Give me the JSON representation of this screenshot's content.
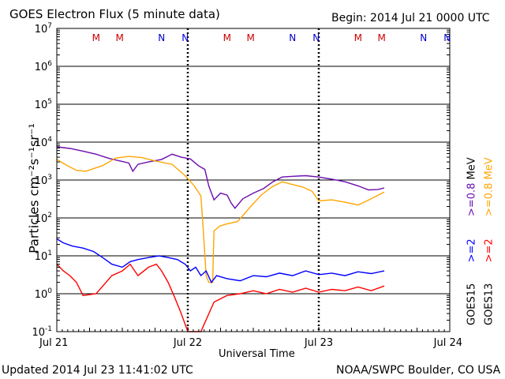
{
  "header": {
    "title": "GOES Electron Flux (5 minute data)",
    "begin": "Begin: 2014 Jul 21 0000 UTC"
  },
  "footer": {
    "updated": "Updated 2014 Jul 23 11:41:02 UTC",
    "credit": "NOAA/SWPC Boulder, CO USA"
  },
  "colors": {
    "goes15_low": "#0000ff",
    "goes15_high": "#6a0dad",
    "goes13_low": "#ff0000",
    "goes13_high": "#ffa500",
    "marker_m": "#cc0000",
    "marker_n": "#0000cc"
  },
  "chart_data": {
    "type": "line",
    "title": "GOES Electron Flux (5 minute data)",
    "xlabel": "Universal Time",
    "ylabel": "Particles cm⁻²s⁻¹sr⁻¹",
    "yscale": "log",
    "ylim": [
      0.1,
      10000000
    ],
    "y_ticks": [
      {
        "base": "10",
        "exp": "-1"
      },
      {
        "base": "10",
        "exp": "0"
      },
      {
        "base": "10",
        "exp": "1"
      },
      {
        "base": "10",
        "exp": "2"
      },
      {
        "base": "10",
        "exp": "3"
      },
      {
        "base": "10",
        "exp": "4"
      },
      {
        "base": "10",
        "exp": "5"
      },
      {
        "base": "10",
        "exp": "6"
      },
      {
        "base": "10",
        "exp": "7"
      }
    ],
    "x_ticks": [
      "Jul 21",
      "Jul 22",
      "Jul 23",
      "Jul 24"
    ],
    "xlim_days": [
      0,
      3
    ],
    "alert_threshold": 1000,
    "day_boundaries_days": [
      1,
      2
    ],
    "markers": [
      {
        "label": "M",
        "day": 0.3,
        "type": "m"
      },
      {
        "label": "M",
        "day": 0.48,
        "type": "m"
      },
      {
        "label": "N",
        "day": 0.8,
        "type": "n"
      },
      {
        "label": "N",
        "day": 0.98,
        "type": "n"
      },
      {
        "label": "M",
        "day": 1.3,
        "type": "m"
      },
      {
        "label": "M",
        "day": 1.48,
        "type": "m"
      },
      {
        "label": "N",
        "day": 1.8,
        "type": "n"
      },
      {
        "label": "N",
        "day": 1.98,
        "type": "n"
      },
      {
        "label": "M",
        "day": 2.3,
        "type": "m"
      },
      {
        "label": "M",
        "day": 2.48,
        "type": "m"
      },
      {
        "label": "N",
        "day": 2.8,
        "type": "n"
      },
      {
        "label": "N",
        "day": 2.98,
        "type": "n"
      }
    ],
    "legend": {
      "goes15": "GOES15",
      "goes13": "GOES13",
      "low_energy": ">=2",
      "high_energy": ">=0.8",
      "unit": "MeV"
    },
    "series": [
      {
        "satellite": "GOES15",
        "energy": ">=0.8 MeV",
        "color": "#6a0dad",
        "points": [
          [
            0,
            7500
          ],
          [
            0.1,
            6800
          ],
          [
            0.2,
            5800
          ],
          [
            0.3,
            4800
          ],
          [
            0.4,
            3700
          ],
          [
            0.55,
            2800
          ],
          [
            0.58,
            1700
          ],
          [
            0.62,
            2600
          ],
          [
            0.7,
            3000
          ],
          [
            0.8,
            3500
          ],
          [
            0.88,
            4800
          ],
          [
            0.95,
            4000
          ],
          [
            1.02,
            3600
          ],
          [
            1.08,
            2400
          ],
          [
            1.13,
            1900
          ],
          [
            1.16,
            700
          ],
          [
            1.2,
            300
          ],
          [
            1.25,
            450
          ],
          [
            1.3,
            400
          ],
          [
            1.33,
            250
          ],
          [
            1.36,
            180
          ],
          [
            1.42,
            320
          ],
          [
            1.5,
            450
          ],
          [
            1.58,
            600
          ],
          [
            1.65,
            900
          ],
          [
            1.72,
            1200
          ],
          [
            1.8,
            1250
          ],
          [
            1.9,
            1300
          ],
          [
            2.0,
            1200
          ],
          [
            2.1,
            1050
          ],
          [
            2.2,
            900
          ],
          [
            2.3,
            700
          ],
          [
            2.38,
            550
          ],
          [
            2.45,
            560
          ],
          [
            2.5,
            620
          ]
        ]
      },
      {
        "satellite": "GOES13",
        "energy": ">=0.8 MeV",
        "color": "#ffa500",
        "points": [
          [
            0,
            3500
          ],
          [
            0.08,
            2400
          ],
          [
            0.15,
            1800
          ],
          [
            0.22,
            1700
          ],
          [
            0.35,
            2400
          ],
          [
            0.45,
            3800
          ],
          [
            0.55,
            4200
          ],
          [
            0.65,
            3900
          ],
          [
            0.75,
            3200
          ],
          [
            0.88,
            2600
          ],
          [
            0.98,
            1300
          ],
          [
            1.05,
            700
          ],
          [
            1.1,
            380
          ],
          [
            1.12,
            40
          ],
          [
            1.14,
            3
          ],
          [
            1.16,
            2
          ],
          [
            1.19,
            2
          ],
          [
            1.2,
            45
          ],
          [
            1.24,
            60
          ],
          [
            1.3,
            70
          ],
          [
            1.38,
            80
          ],
          [
            1.48,
            200
          ],
          [
            1.56,
            400
          ],
          [
            1.64,
            650
          ],
          [
            1.72,
            900
          ],
          [
            1.8,
            760
          ],
          [
            1.88,
            650
          ],
          [
            1.95,
            500
          ],
          [
            2.0,
            280
          ],
          [
            2.1,
            300
          ],
          [
            2.2,
            260
          ],
          [
            2.3,
            220
          ],
          [
            2.4,
            320
          ],
          [
            2.5,
            480
          ]
        ]
      },
      {
        "satellite": "GOES15",
        "energy": ">=2 MeV",
        "color": "#0000ff",
        "points": [
          [
            0,
            28
          ],
          [
            0.05,
            22
          ],
          [
            0.12,
            18
          ],
          [
            0.2,
            16
          ],
          [
            0.28,
            13
          ],
          [
            0.35,
            9
          ],
          [
            0.42,
            6
          ],
          [
            0.5,
            5
          ],
          [
            0.56,
            7
          ],
          [
            0.62,
            8
          ],
          [
            0.7,
            9
          ],
          [
            0.78,
            10
          ],
          [
            0.85,
            9
          ],
          [
            0.92,
            8
          ],
          [
            0.98,
            6
          ],
          [
            1.02,
            4
          ],
          [
            1.06,
            5
          ],
          [
            1.1,
            3
          ],
          [
            1.14,
            4
          ],
          [
            1.18,
            2
          ],
          [
            1.22,
            3
          ],
          [
            1.3,
            2.5
          ],
          [
            1.4,
            2.2
          ],
          [
            1.5,
            3
          ],
          [
            1.6,
            2.8
          ],
          [
            1.7,
            3.5
          ],
          [
            1.8,
            3
          ],
          [
            1.9,
            4
          ],
          [
            2.0,
            3.2
          ],
          [
            2.1,
            3.5
          ],
          [
            2.2,
            3
          ],
          [
            2.3,
            3.8
          ],
          [
            2.4,
            3.4
          ],
          [
            2.5,
            4
          ]
        ]
      },
      {
        "satellite": "GOES13",
        "energy": ">=2 MeV",
        "color": "#ff0000",
        "points": [
          [
            0,
            6
          ],
          [
            0.05,
            4
          ],
          [
            0.1,
            3
          ],
          [
            0.15,
            2
          ],
          [
            0.2,
            0.9
          ],
          [
            0.3,
            1
          ],
          [
            0.42,
            3
          ],
          [
            0.5,
            4
          ],
          [
            0.56,
            6
          ],
          [
            0.62,
            3
          ],
          [
            0.7,
            5
          ],
          [
            0.76,
            6
          ],
          [
            0.8,
            4
          ],
          [
            0.85,
            2
          ],
          [
            0.9,
            0.8
          ],
          [
            0.95,
            0.3
          ],
          [
            1.0,
            0.1
          ],
          [
            1.1,
            0.1
          ],
          [
            1.2,
            0.6
          ],
          [
            1.3,
            0.9
          ],
          [
            1.4,
            1
          ],
          [
            1.5,
            1.2
          ],
          [
            1.6,
            1
          ],
          [
            1.7,
            1.3
          ],
          [
            1.8,
            1.1
          ],
          [
            1.9,
            1.4
          ],
          [
            2.0,
            1.1
          ],
          [
            2.1,
            1.3
          ],
          [
            2.2,
            1.2
          ],
          [
            2.3,
            1.5
          ],
          [
            2.4,
            1.2
          ],
          [
            2.5,
            1.6
          ]
        ]
      }
    ]
  }
}
